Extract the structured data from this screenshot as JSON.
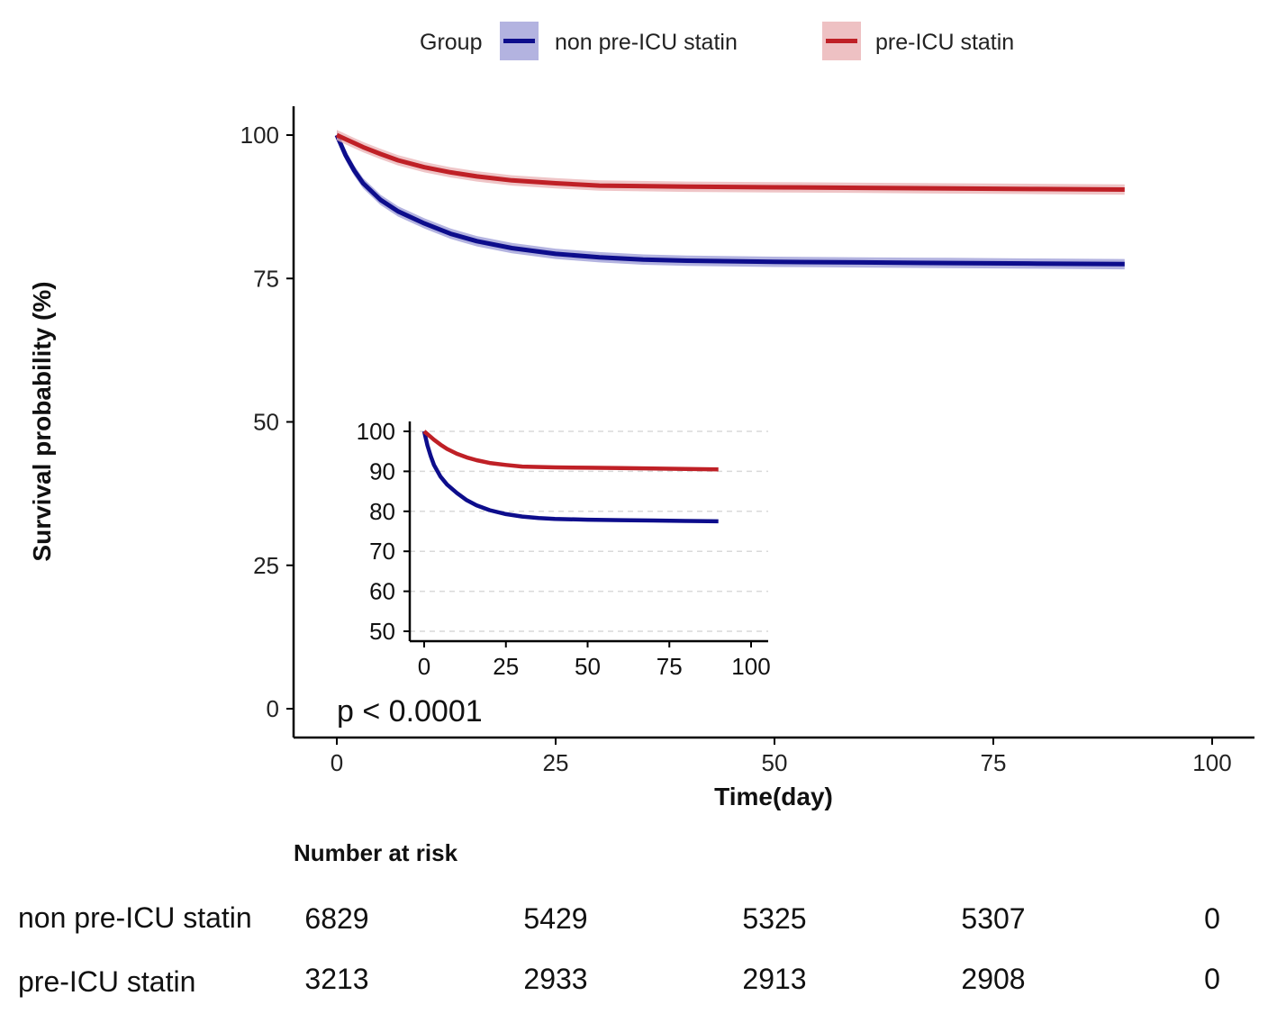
{
  "chart_data": {
    "type": "line",
    "subtype": "kaplan-meier",
    "title": "",
    "xlabel": "Time(day)",
    "ylabel": "Survival probability (%)",
    "xlim": [
      0,
      100
    ],
    "ylim": [
      0,
      100
    ],
    "x_ticks": [
      0,
      25,
      50,
      75,
      100
    ],
    "y_ticks": [
      0,
      25,
      50,
      75,
      100
    ],
    "legend": {
      "title": "Group",
      "placement": "top",
      "entries": [
        "non pre-ICU statin",
        "pre-ICU statin"
      ]
    },
    "series": [
      {
        "name": "non pre-ICU statin",
        "color": "#0d0d8c",
        "ci_color": "#9a9ad6",
        "x": [
          0,
          1,
          2,
          3,
          5,
          7,
          10,
          13,
          16,
          20,
          25,
          30,
          35,
          40,
          50,
          60,
          70,
          80,
          90
        ],
        "y": [
          100,
          96.5,
          93.8,
          91.6,
          88.7,
          86.7,
          84.6,
          82.8,
          81.5,
          80.3,
          79.3,
          78.7,
          78.3,
          78.1,
          77.9,
          77.8,
          77.7,
          77.6,
          77.5
        ]
      },
      {
        "name": "pre-ICU statin",
        "color": "#bf2026",
        "ci_color": "#eab1b4",
        "x": [
          0,
          1,
          2,
          3,
          5,
          7,
          10,
          13,
          16,
          20,
          25,
          30,
          40,
          50,
          60,
          70,
          80,
          90
        ],
        "y": [
          100,
          99.3,
          98.6,
          97.9,
          96.7,
          95.6,
          94.4,
          93.5,
          92.8,
          92.1,
          91.6,
          91.2,
          91.0,
          90.9,
          90.8,
          90.7,
          90.6,
          90.5
        ]
      }
    ],
    "annotation": "p < 0.0001",
    "inset": {
      "xlim": [
        0,
        100
      ],
      "ylim": [
        50,
        100
      ],
      "x_ticks": [
        0,
        25,
        50,
        75,
        100
      ],
      "y_ticks": [
        50,
        60,
        70,
        80,
        90,
        100
      ],
      "grid": "dashed horizontal"
    },
    "risk_table": {
      "title": "Number at risk",
      "times": [
        0,
        25,
        50,
        75,
        100
      ],
      "rows": [
        {
          "group": "non pre-ICU statin",
          "values": [
            6829,
            5429,
            5325,
            5307,
            0
          ]
        },
        {
          "group": "pre-ICU statin",
          "values": [
            3213,
            2933,
            2913,
            2908,
            0
          ]
        }
      ]
    }
  }
}
